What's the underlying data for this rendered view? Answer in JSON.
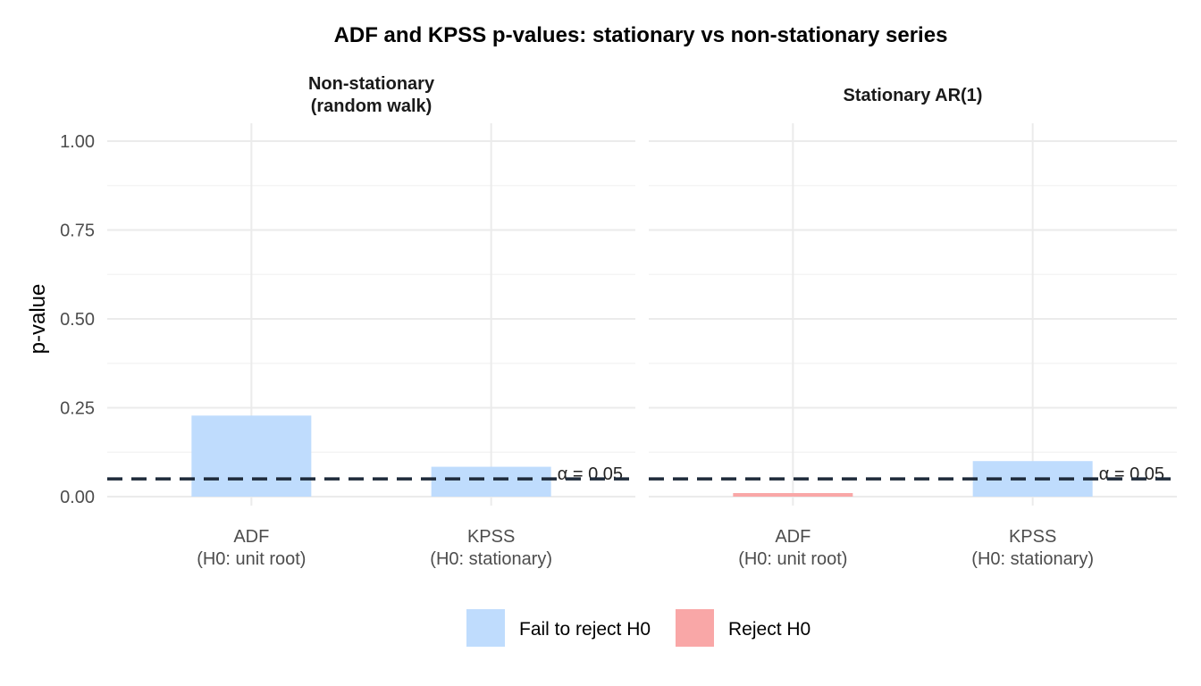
{
  "chart_data": {
    "type": "bar",
    "title": "ADF and KPSS p-values: stationary vs non-stationary series",
    "ylabel": "p-value",
    "xlabel": "",
    "ylim": [
      0,
      1.05
    ],
    "y_ticks": [
      "0.00",
      "0.25",
      "0.50",
      "0.75",
      "1.00"
    ],
    "y_tick_values": [
      0,
      0.25,
      0.5,
      0.75,
      1.0
    ],
    "categories": [
      {
        "line1": "ADF",
        "line2": "(H0: unit root)"
      },
      {
        "line1": "KPSS",
        "line2": "(H0: stationary)"
      }
    ],
    "panels": [
      {
        "title_lines": [
          "Non-stationary",
          "(random walk)"
        ],
        "bars": [
          {
            "category": "ADF",
            "value": 0.228,
            "decision": "Fail to reject H0"
          },
          {
            "category": "KPSS",
            "value": 0.084,
            "decision": "Fail to reject H0"
          }
        ]
      },
      {
        "title_lines": [
          "Stationary AR(1)"
        ],
        "bars": [
          {
            "category": "ADF",
            "value": 0.01,
            "decision": "Reject H0"
          },
          {
            "category": "KPSS",
            "value": 0.1,
            "decision": "Fail to reject H0"
          }
        ]
      }
    ],
    "threshold": {
      "value": 0.05,
      "label": "α = 0.05",
      "color": "#1e2a3a"
    },
    "legend": {
      "position": "bottom",
      "items": [
        {
          "label": "Fail to reject H0",
          "color": "#bfdcfd"
        },
        {
          "label": "Reject H0",
          "color": "#f9a7a7"
        }
      ]
    },
    "grid": true
  }
}
